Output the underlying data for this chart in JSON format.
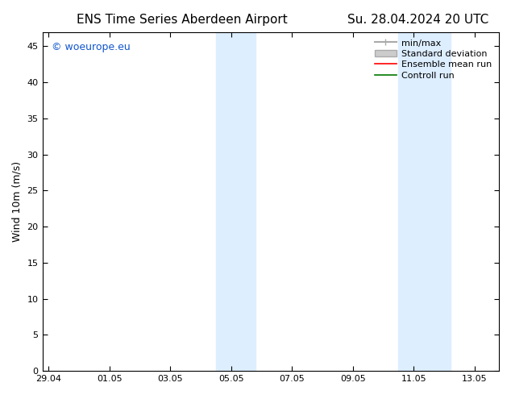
{
  "title_left": "ENS Time Series Aberdeen Airport",
  "title_right": "Su. 28.04.2024 20 UTC",
  "ylabel": "Wind 10m (m/s)",
  "ylim": [
    0,
    47
  ],
  "yticks": [
    0,
    5,
    10,
    15,
    20,
    25,
    30,
    35,
    40,
    45
  ],
  "xtick_labels": [
    "29.04",
    "01.05",
    "03.05",
    "05.05",
    "07.05",
    "09.05",
    "11.05",
    "13.05"
  ],
  "xtick_positions": [
    0,
    2,
    4,
    6,
    8,
    10,
    12,
    14
  ],
  "xmin": -0.2,
  "xmax": 14.8,
  "shaded_regions": [
    {
      "x_start": 5.5,
      "x_end": 6.8,
      "color": "#ddeeff"
    },
    {
      "x_start": 11.5,
      "x_end": 13.2,
      "color": "#ddeeff"
    }
  ],
  "watermark_text": "© woeurope.eu",
  "watermark_color": "#1155cc",
  "legend_labels": [
    "min/max",
    "Standard deviation",
    "Ensemble mean run",
    "Controll run"
  ],
  "legend_colors": [
    "#aaaaaa",
    "#cccccc",
    "#ff0000",
    "#007700"
  ],
  "bg_color": "#ffffff",
  "plot_bg_color": "#ffffff",
  "spine_color": "#000000",
  "tick_color": "#000000",
  "font_size_title": 11,
  "font_size_axis": 9,
  "font_size_tick": 8,
  "font_size_legend": 8,
  "font_size_watermark": 9
}
